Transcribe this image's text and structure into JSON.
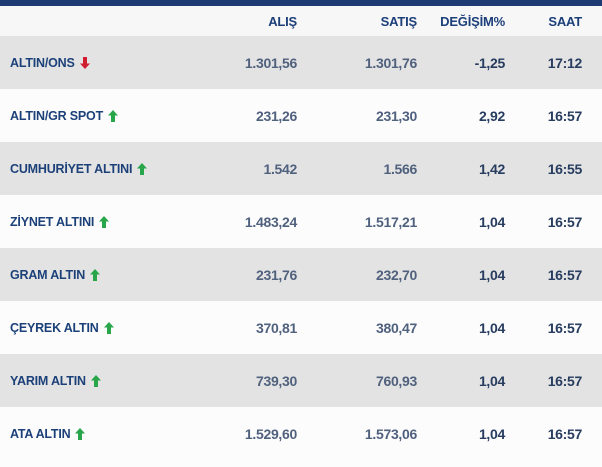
{
  "colors": {
    "top_bar": "#1e3c73",
    "header_bg": "#f7f7f7",
    "row_odd_bg": "#e3e3e3",
    "row_even_bg": "#fcfcfc",
    "label_text": "#1c4179",
    "price_text": "#50617e",
    "change_text": "#273c5f",
    "up_arrow": "#29a64a",
    "down_arrow": "#cf1d2f"
  },
  "table": {
    "columns": [
      "ALIŞ",
      "SATIŞ",
      "DEĞİŞİM%",
      "SAAT"
    ],
    "rows": [
      {
        "label": "ALTIN/ONS",
        "direction": "down",
        "alis": "1.301,56",
        "satis": "1.301,76",
        "degisim": "-1,25",
        "saat": "17:12"
      },
      {
        "label": "ALTIN/GR SPOT",
        "direction": "up",
        "alis": "231,26",
        "satis": "231,30",
        "degisim": "2,92",
        "saat": "16:57"
      },
      {
        "label": "CUMHURİYET ALTINI",
        "direction": "up",
        "alis": "1.542",
        "satis": "1.566",
        "degisim": "1,42",
        "saat": "16:55"
      },
      {
        "label": "ZİYNET ALTINI",
        "direction": "up",
        "alis": "1.483,24",
        "satis": "1.517,21",
        "degisim": "1,04",
        "saat": "16:57"
      },
      {
        "label": "GRAM ALTIN",
        "direction": "up",
        "alis": "231,76",
        "satis": "232,70",
        "degisim": "1,04",
        "saat": "16:57"
      },
      {
        "label": "ÇEYREK ALTIN",
        "direction": "up",
        "alis": "370,81",
        "satis": "380,47",
        "degisim": "1,04",
        "saat": "16:57"
      },
      {
        "label": "YARIM ALTIN",
        "direction": "up",
        "alis": "739,30",
        "satis": "760,93",
        "degisim": "1,04",
        "saat": "16:57"
      },
      {
        "label": "ATA ALTIN",
        "direction": "up",
        "alis": "1.529,60",
        "satis": "1.573,06",
        "degisim": "1,04",
        "saat": "16:57"
      }
    ]
  }
}
